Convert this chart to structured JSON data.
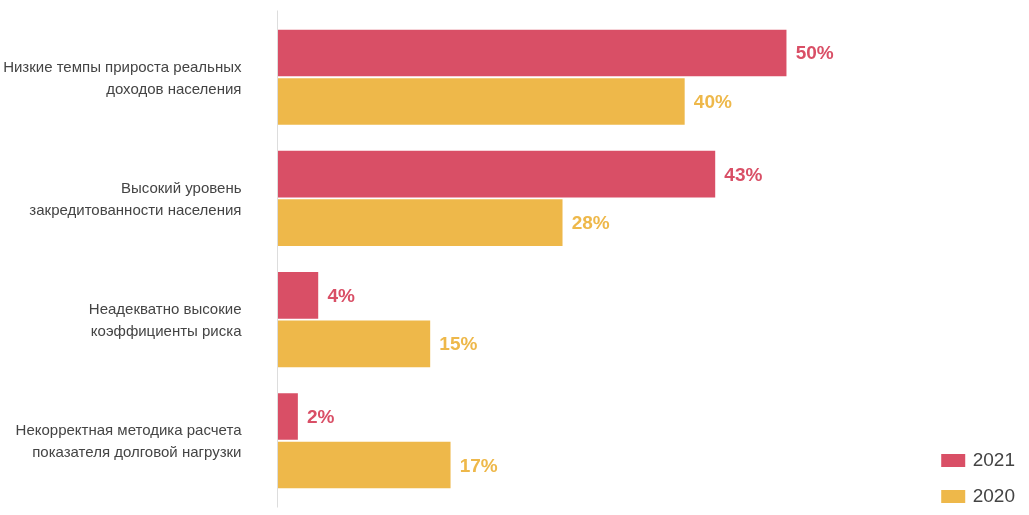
{
  "chart_data": {
    "type": "bar",
    "orientation": "horizontal",
    "categories": [
      "Низкие темпы прироста реальных\nдоходов населения",
      "Высокий уровень\nзакредитованности населения",
      "Неадекватно высокие\nкоэффициенты риска",
      "Некорректная методика расчета\nпоказателя долговой нагрузки"
    ],
    "series": [
      {
        "name": "2021",
        "color": "#d94f66",
        "values": [
          50,
          43,
          4,
          2
        ],
        "value_labels": [
          "50%",
          "43%",
          "4%",
          "2%"
        ]
      },
      {
        "name": "2020",
        "color": "#eeb84a",
        "values": [
          40,
          28,
          15,
          17
        ],
        "value_labels": [
          "40%",
          "28%",
          "15%",
          "17%"
        ]
      }
    ],
    "legend": "bottom right",
    "grid": false
  }
}
